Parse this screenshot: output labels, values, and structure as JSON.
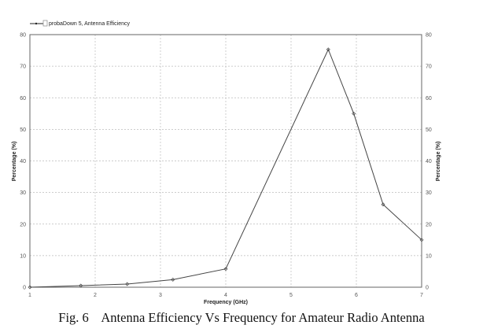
{
  "chart_data": {
    "type": "line",
    "title": "",
    "legend": {
      "entries": [
        "probaDown 5, Antenna Efficiency"
      ],
      "placement": "top-left"
    },
    "xlabel": "Frequency (GHz)",
    "ylabel": "Percentage (%)",
    "ylabel_right": "Percentage (%)",
    "xlim": [
      1,
      7
    ],
    "ylim": [
      0,
      80
    ],
    "xticks": [
      "1",
      "2",
      "3",
      "4",
      "5",
      "6",
      "7"
    ],
    "yticks": [
      "0",
      "10",
      "20",
      "30",
      "40",
      "50",
      "60",
      "70",
      "80"
    ],
    "grid": true,
    "series": [
      {
        "name": "probaDown 5, Antenna Efficiency",
        "x": [
          1.0,
          1.78,
          2.49,
          3.19,
          4.0,
          5.57,
          5.96,
          6.41,
          7.0
        ],
        "y": [
          0.0,
          0.5,
          1.0,
          2.4,
          5.8,
          75.3,
          55.0,
          26.2,
          15.0
        ]
      }
    ]
  },
  "caption": "Fig. 6    Antenna Efficiency Vs Frequency for Amateur Radio Antenna"
}
